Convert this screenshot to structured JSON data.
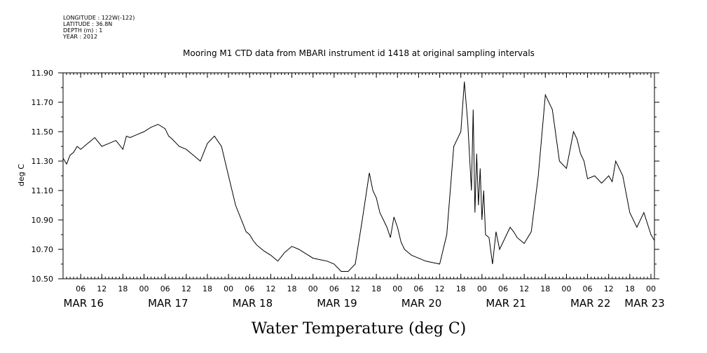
{
  "header": {
    "lines": [
      "LONGITUDE : 122W(-122)",
      "LATITUDE : 36.8N",
      "DEPTH (m) : 1",
      "YEAR : 2012"
    ]
  },
  "chart_data": {
    "type": "line",
    "title": "Mooring M1 CTD data from MBARI instrument id 1418 at original sampling intervals",
    "xlabel": "Water Temperature (deg C)",
    "ylabel": "deg C",
    "xlim": [
      1,
      169
    ],
    "ylim": [
      10.5,
      11.9
    ],
    "yticks": [
      "10.50",
      "10.70",
      "10.90",
      "11.10",
      "11.30",
      "11.50",
      "11.70",
      "11.90"
    ],
    "hour_ticks": [
      "06",
      "12",
      "18",
      "00",
      "06",
      "12",
      "18",
      "00",
      "06",
      "12",
      "18",
      "00",
      "06",
      "12",
      "18",
      "00",
      "06",
      "12",
      "18",
      "00",
      "06",
      "12",
      "18",
      "00",
      "06",
      "12",
      "18",
      "00"
    ],
    "day_labels": [
      "MAR 16",
      "MAR 17",
      "MAR 18",
      "MAR 19",
      "MAR 20",
      "MAR 21",
      "MAR 22",
      "MAR 23"
    ],
    "series": [
      {
        "x": [
          1,
          2,
          3,
          4,
          5,
          6,
          8,
          9,
          10,
          12,
          14,
          16,
          18,
          19,
          20,
          22,
          24,
          26,
          28,
          30,
          31,
          32,
          34,
          36,
          38,
          40,
          42,
          44,
          46,
          48,
          50,
          52,
          53,
          54,
          55,
          56,
          57,
          58,
          60,
          62,
          64,
          66,
          68,
          70,
          72,
          74,
          76,
          78,
          80,
          82,
          84,
          86,
          88,
          89,
          90,
          91,
          92,
          93,
          94,
          95,
          96,
          97,
          98,
          99,
          100,
          102,
          104,
          106,
          108,
          110,
          112,
          114,
          115,
          116,
          117,
          117.5,
          118,
          118.5,
          119,
          119.5,
          120,
          120.5,
          121,
          122,
          123,
          124,
          125,
          126,
          127,
          128,
          129,
          130,
          131,
          132,
          134,
          136,
          138,
          140,
          142,
          144,
          146,
          147,
          148,
          149,
          150,
          152,
          154,
          156,
          157,
          158,
          160,
          162,
          164,
          166,
          168,
          169
        ],
        "y": [
          11.32,
          11.28,
          11.34,
          11.36,
          11.4,
          11.38,
          11.42,
          11.44,
          11.46,
          11.4,
          11.42,
          11.44,
          11.38,
          11.47,
          11.46,
          11.48,
          11.5,
          11.53,
          11.55,
          11.52,
          11.47,
          11.45,
          11.4,
          11.38,
          11.34,
          11.3,
          11.42,
          11.47,
          11.4,
          11.2,
          11.0,
          10.88,
          10.82,
          10.8,
          10.76,
          10.73,
          10.71,
          10.69,
          10.66,
          10.62,
          10.68,
          10.72,
          10.7,
          10.67,
          10.64,
          10.63,
          10.62,
          10.6,
          10.55,
          10.55,
          10.6,
          10.9,
          11.22,
          11.1,
          11.05,
          10.95,
          10.9,
          10.85,
          10.78,
          10.92,
          10.85,
          10.75,
          10.7,
          10.68,
          10.66,
          10.64,
          10.62,
          10.61,
          10.6,
          10.8,
          11.4,
          11.5,
          11.84,
          11.55,
          11.1,
          11.65,
          10.95,
          11.35,
          11.0,
          11.25,
          10.9,
          11.1,
          10.8,
          10.78,
          10.6,
          10.82,
          10.7,
          10.75,
          10.8,
          10.85,
          10.82,
          10.78,
          10.76,
          10.74,
          10.82,
          11.2,
          11.75,
          11.65,
          11.3,
          11.25,
          11.5,
          11.45,
          11.35,
          11.3,
          11.18,
          11.2,
          11.15,
          11.2,
          11.16,
          11.3,
          11.2,
          10.95,
          10.85,
          10.95,
          10.8,
          10.76
        ]
      }
    ]
  }
}
